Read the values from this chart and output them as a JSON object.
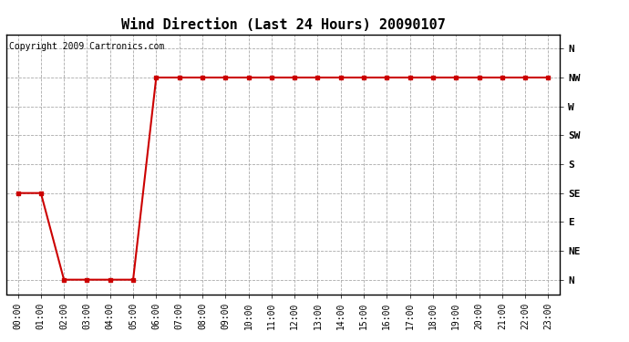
{
  "title": "Wind Direction (Last 24 Hours) 20090107",
  "copyright_text": "Copyright 2009 Cartronics.com",
  "plot_bg_color": "#ffffff",
  "line_color": "#cc0000",
  "marker": "s",
  "marker_size": 3,
  "line_width": 1.5,
  "grid_color": "#aaaaaa",
  "grid_linestyle": "--",
  "ytick_labels": [
    "N",
    "NE",
    "E",
    "SE",
    "S",
    "SW",
    "W",
    "NW",
    "N"
  ],
  "ytick_values": [
    0,
    1,
    2,
    3,
    4,
    5,
    6,
    7,
    8
  ],
  "x_hours": [
    0,
    1,
    2,
    3,
    4,
    5,
    6,
    7,
    8,
    9,
    10,
    11,
    12,
    13,
    14,
    15,
    16,
    17,
    18,
    19,
    20,
    21,
    22,
    23
  ],
  "y_values": [
    3,
    3,
    0,
    0,
    0,
    0,
    7,
    7,
    7,
    7,
    7,
    7,
    7,
    7,
    7,
    7,
    7,
    7,
    7,
    7,
    7,
    7,
    7,
    7
  ],
  "xlim": [
    -0.5,
    23.5
  ],
  "ylim": [
    -0.5,
    8.5
  ],
  "title_fontsize": 11,
  "copyright_fontsize": 7,
  "tick_label_fontsize": 8,
  "xtick_label_fontsize": 7,
  "outer_bg": "#ffffff"
}
